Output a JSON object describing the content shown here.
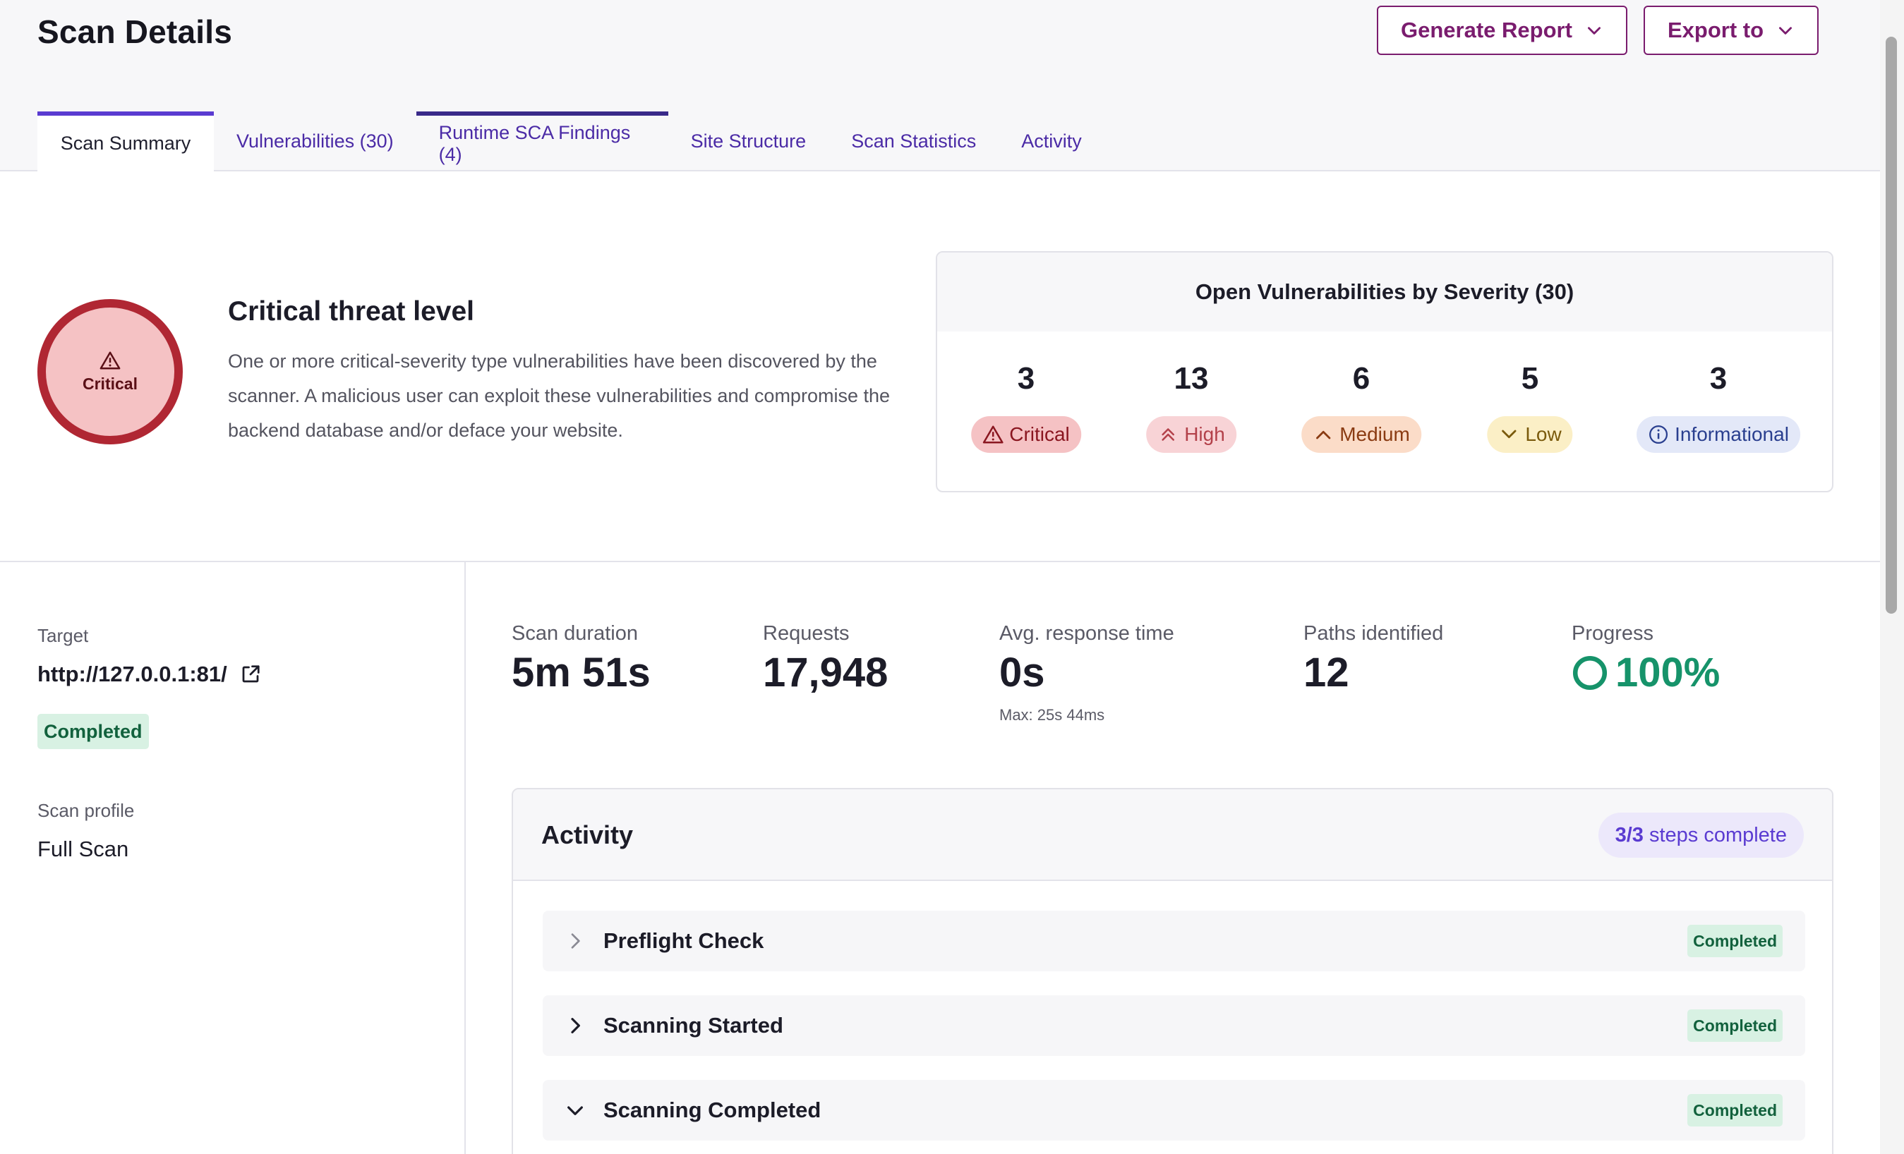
{
  "header": {
    "title": "Scan Details",
    "generate_report_label": "Generate Report",
    "export_label": "Export to"
  },
  "tabs": [
    {
      "label": "Scan Summary"
    },
    {
      "label": "Vulnerabilities (30)"
    },
    {
      "label": "Runtime SCA Findings (4)"
    },
    {
      "label": "Site Structure"
    },
    {
      "label": "Scan Statistics"
    },
    {
      "label": "Activity"
    }
  ],
  "threat": {
    "ring_label": "Critical",
    "title": "Critical threat level",
    "description": "One or more critical-severity type vulnerabilities have been discovered by the scanner. A malicious user can exploit these vulnerabilities and compromise the backend database and/or deface your website."
  },
  "severity": {
    "title": "Open Vulnerabilities by Severity (30)",
    "items": [
      {
        "count": "3",
        "label": "Critical",
        "icon": "warning-triangle-icon",
        "bg": "#f5c2c4",
        "fg": "#8a1620"
      },
      {
        "count": "13",
        "label": "High",
        "icon": "double-chevron-up-icon",
        "bg": "#f8d3d6",
        "fg": "#b3414a"
      },
      {
        "count": "6",
        "label": "Medium",
        "icon": "chevron-up-icon",
        "bg": "#fbdcc8",
        "fg": "#8a3b12"
      },
      {
        "count": "5",
        "label": "Low",
        "icon": "chevron-down-icon",
        "bg": "#fbefc6",
        "fg": "#7a5a0c"
      },
      {
        "count": "3",
        "label": "Informational",
        "icon": "info-circle-icon",
        "bg": "#e3e8f8",
        "fg": "#2a3f8f"
      }
    ]
  },
  "target": {
    "label": "Target",
    "url": "http://127.0.0.1:81/",
    "status": "Completed",
    "profile_label": "Scan profile",
    "profile_value": "Full Scan"
  },
  "stats": {
    "duration_label": "Scan duration",
    "duration_value": "5m 51s",
    "requests_label": "Requests",
    "requests_value": "17,948",
    "avg_label": "Avg. response time",
    "avg_value": "0s",
    "avg_max": "Max: 25s 44ms",
    "paths_label": "Paths identified",
    "paths_value": "12",
    "progress_label": "Progress",
    "progress_value": "100%"
  },
  "activity": {
    "title": "Activity",
    "steps_count": "3/3",
    "steps_text": "steps complete",
    "rows": [
      {
        "name": "Preflight Check",
        "status": "Completed",
        "expanded": false
      },
      {
        "name": "Scanning Started",
        "status": "Completed",
        "expanded": false
      },
      {
        "name": "Scanning Completed",
        "status": "Completed",
        "expanded": true
      }
    ]
  },
  "colors": {
    "accent": "#5a3bd1",
    "brand_button": "#7a1c6e",
    "critical_ring": "#b02733",
    "success": "#16936a"
  }
}
